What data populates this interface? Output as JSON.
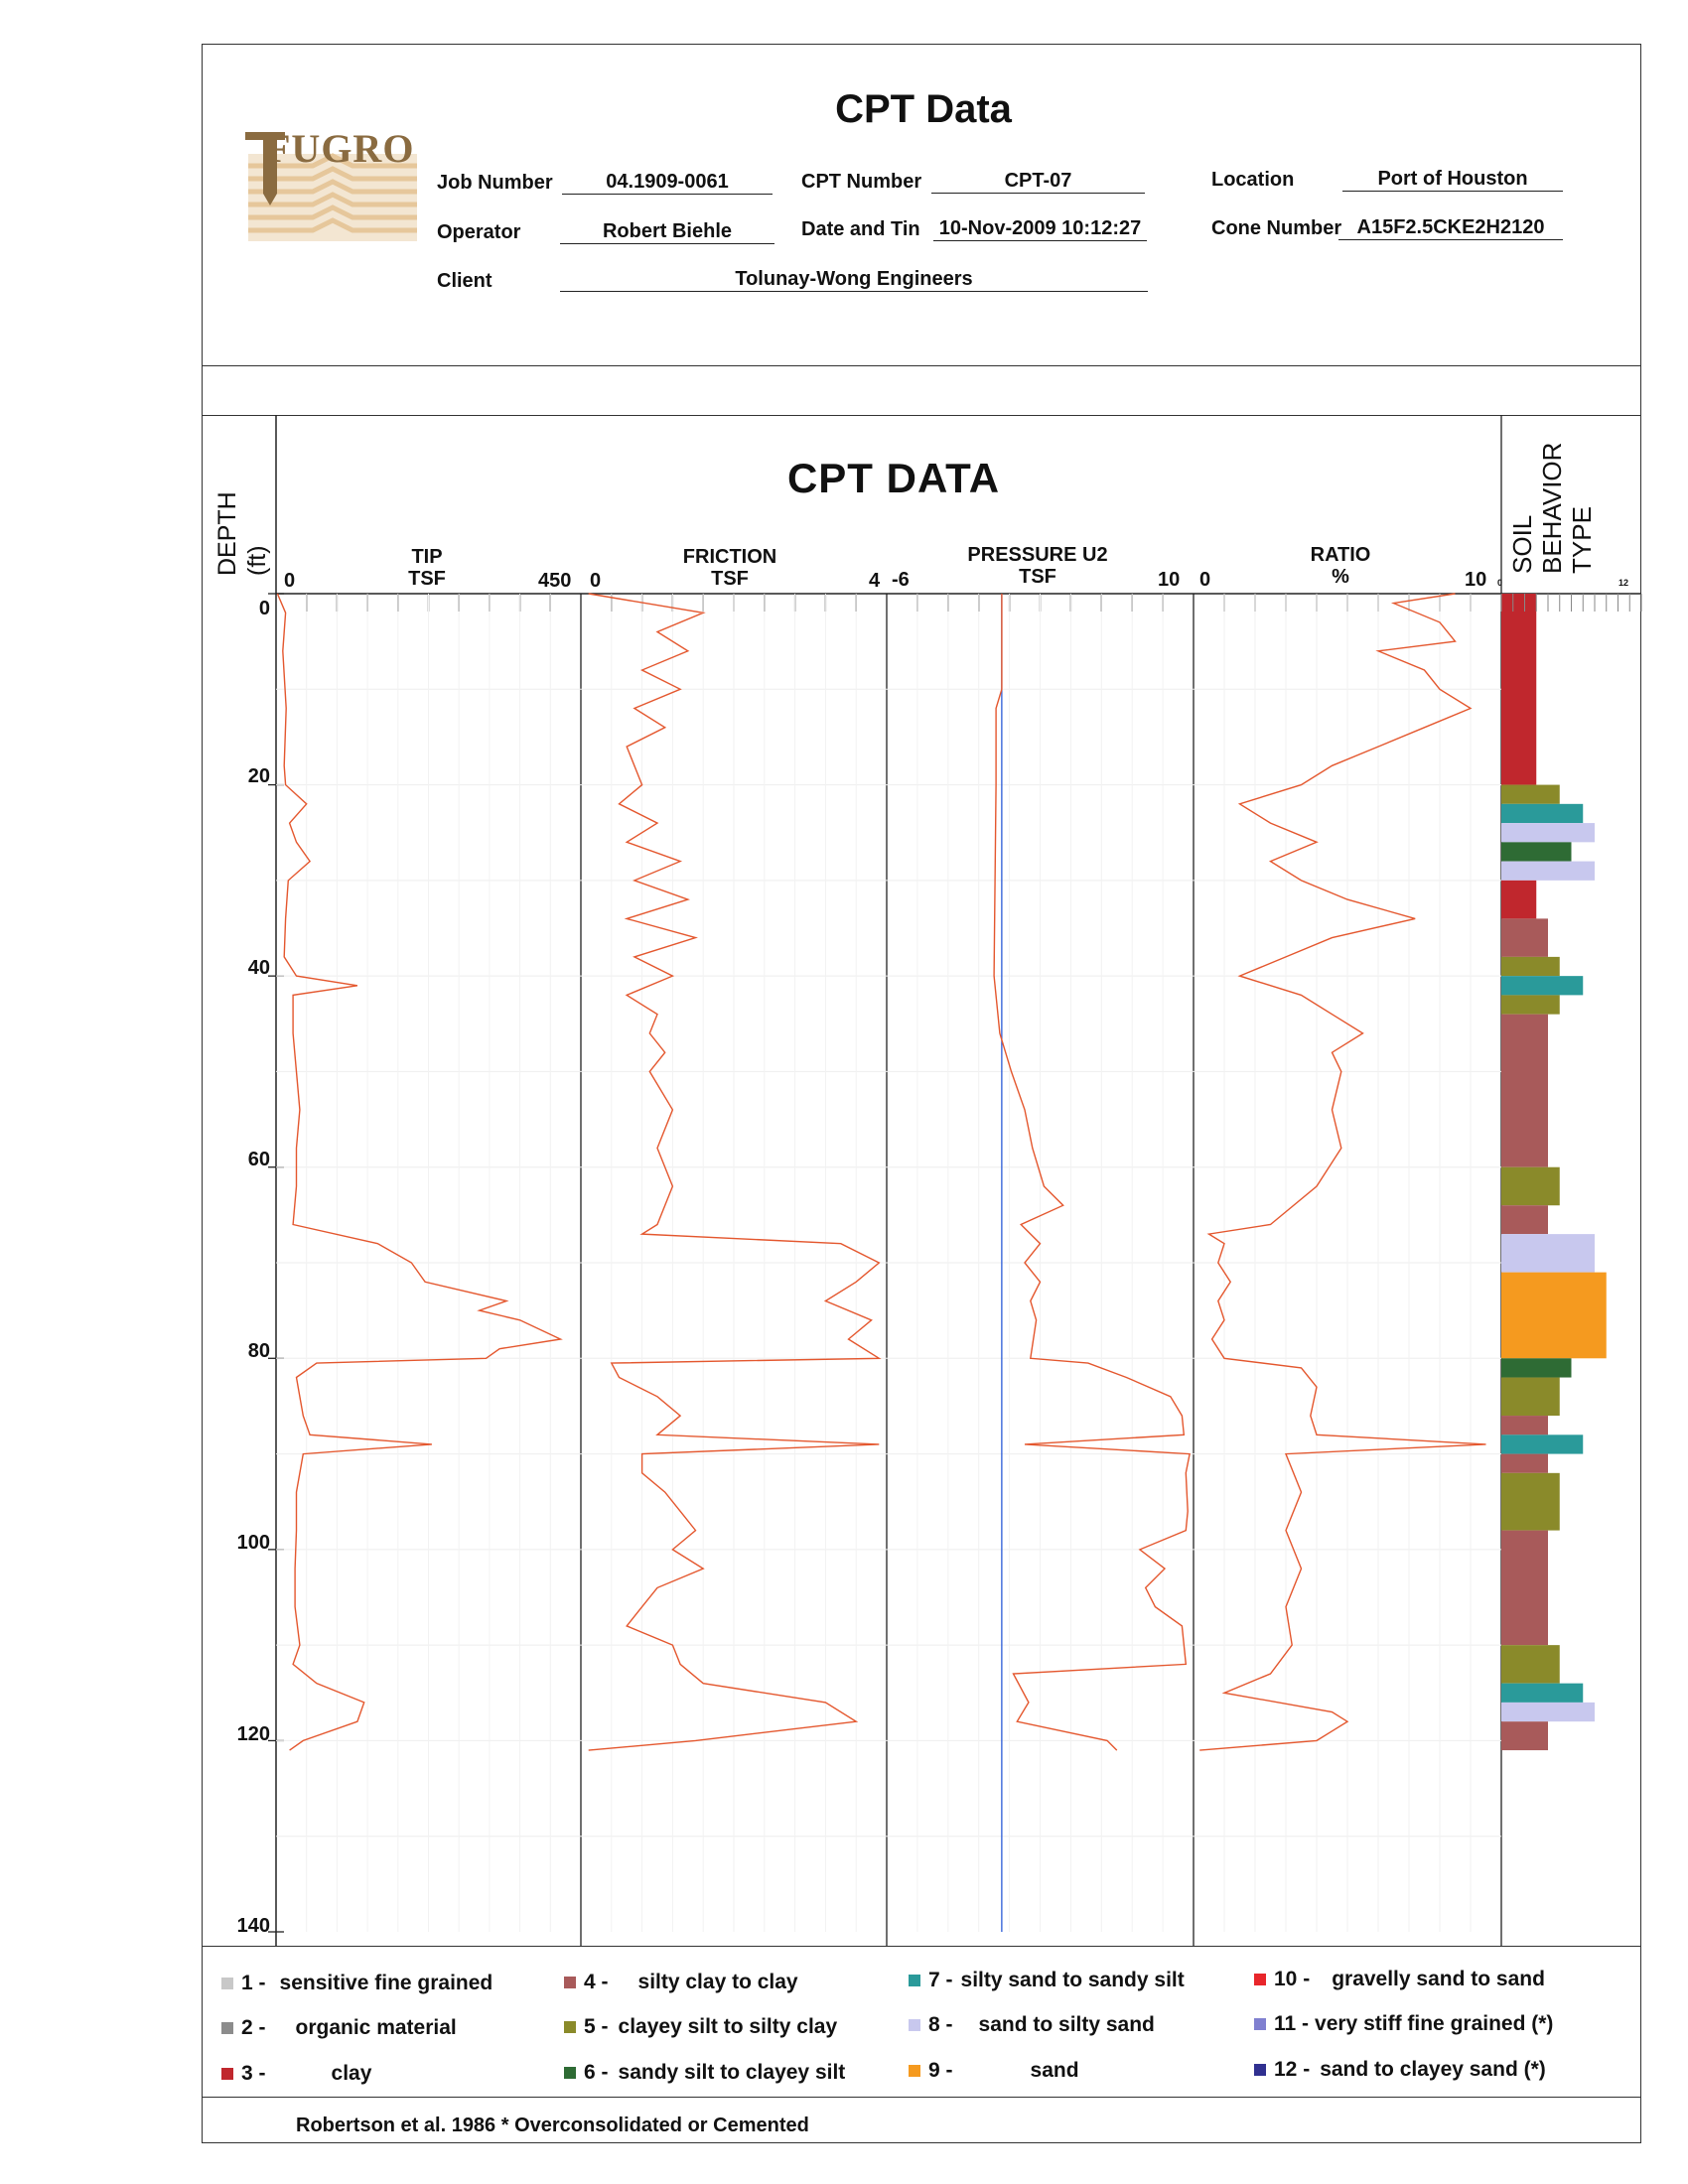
{
  "header": {
    "title": "CPT Data",
    "logo_text": "FUGRO",
    "fields": {
      "job_number_label": "Job Number",
      "job_number": "04.1909-0061",
      "cpt_number_label": "CPT Number",
      "cpt_number": "CPT-07",
      "location_label": "Location",
      "location": "Port of Houston",
      "operator_label": "Operator",
      "operator": "Robert Biehle",
      "date_label": "Date and Tin",
      "date": "10-Nov-2009 10:12:27",
      "cone_label": "Cone Number",
      "cone": "A15F2.5CKE2H2120",
      "client_label": "Client",
      "client": "Tolunay-Wong Engineers"
    }
  },
  "chart_data": {
    "type": "line",
    "title": "CPT DATA",
    "depth_axis": {
      "label_line1": "DEPTH",
      "label_line2": "(ft)",
      "range": [
        0,
        140
      ],
      "ticks": [
        0,
        20,
        40,
        60,
        80,
        100,
        120,
        140
      ]
    },
    "tracks": [
      {
        "name": "TIP",
        "unit": "TSF",
        "min": 0,
        "max": 450,
        "color": "#e4572e",
        "points": [
          [
            0,
            2
          ],
          [
            2,
            14
          ],
          [
            6,
            10
          ],
          [
            12,
            15
          ],
          [
            18,
            12
          ],
          [
            20,
            14
          ],
          [
            22,
            45
          ],
          [
            24,
            20
          ],
          [
            26,
            30
          ],
          [
            28,
            50
          ],
          [
            30,
            18
          ],
          [
            34,
            14
          ],
          [
            38,
            12
          ],
          [
            40,
            30
          ],
          [
            41,
            120
          ],
          [
            42,
            25
          ],
          [
            46,
            25
          ],
          [
            50,
            30
          ],
          [
            54,
            35
          ],
          [
            58,
            30
          ],
          [
            62,
            30
          ],
          [
            66,
            25
          ],
          [
            68,
            150
          ],
          [
            70,
            200
          ],
          [
            72,
            220
          ],
          [
            74,
            340
          ],
          [
            75,
            300
          ],
          [
            76,
            360
          ],
          [
            78,
            420
          ],
          [
            79,
            330
          ],
          [
            80,
            310
          ],
          [
            80.5,
            60
          ],
          [
            82,
            30
          ],
          [
            86,
            40
          ],
          [
            88,
            50
          ],
          [
            89,
            230
          ],
          [
            90,
            40
          ],
          [
            94,
            30
          ],
          [
            98,
            30
          ],
          [
            102,
            28
          ],
          [
            106,
            28
          ],
          [
            110,
            35
          ],
          [
            112,
            25
          ],
          [
            114,
            60
          ],
          [
            116,
            130
          ],
          [
            118,
            120
          ],
          [
            120,
            40
          ],
          [
            121,
            20
          ]
        ]
      },
      {
        "name": "FRICTION",
        "unit": "TSF",
        "min": 0,
        "max": 4,
        "color": "#e4572e",
        "points": [
          [
            0,
            0.1
          ],
          [
            2,
            1.6
          ],
          [
            4,
            1.0
          ],
          [
            6,
            1.4
          ],
          [
            8,
            0.8
          ],
          [
            10,
            1.3
          ],
          [
            12,
            0.7
          ],
          [
            14,
            1.1
          ],
          [
            16,
            0.6
          ],
          [
            20,
            0.8
          ],
          [
            22,
            0.5
          ],
          [
            24,
            1.0
          ],
          [
            26,
            0.6
          ],
          [
            28,
            1.3
          ],
          [
            30,
            0.7
          ],
          [
            32,
            1.4
          ],
          [
            34,
            0.6
          ],
          [
            36,
            1.5
          ],
          [
            38,
            0.7
          ],
          [
            40,
            1.2
          ],
          [
            42,
            0.6
          ],
          [
            44,
            1.0
          ],
          [
            46,
            0.9
          ],
          [
            48,
            1.1
          ],
          [
            50,
            0.9
          ],
          [
            54,
            1.2
          ],
          [
            58,
            1.0
          ],
          [
            62,
            1.2
          ],
          [
            66,
            1.0
          ],
          [
            67,
            0.8
          ],
          [
            68,
            3.4
          ],
          [
            70,
            3.9
          ],
          [
            72,
            3.6
          ],
          [
            74,
            3.2
          ],
          [
            76,
            3.8
          ],
          [
            78,
            3.5
          ],
          [
            80,
            3.9
          ],
          [
            80.5,
            0.4
          ],
          [
            82,
            0.5
          ],
          [
            84,
            1.0
          ],
          [
            86,
            1.3
          ],
          [
            88,
            1.0
          ],
          [
            89,
            3.9
          ],
          [
            90,
            0.8
          ],
          [
            92,
            0.8
          ],
          [
            94,
            1.1
          ],
          [
            96,
            1.3
          ],
          [
            98,
            1.5
          ],
          [
            100,
            1.2
          ],
          [
            102,
            1.6
          ],
          [
            104,
            1.0
          ],
          [
            106,
            0.8
          ],
          [
            108,
            0.6
          ],
          [
            110,
            1.2
          ],
          [
            112,
            1.3
          ],
          [
            114,
            1.6
          ],
          [
            116,
            3.2
          ],
          [
            118,
            3.6
          ],
          [
            120,
            1.5
          ],
          [
            121,
            0.1
          ]
        ]
      },
      {
        "name": "PRESSURE U2",
        "unit": "TSF",
        "min": -6,
        "max": 10,
        "color": "#e4572e",
        "points": [
          [
            0,
            0
          ],
          [
            10,
            0
          ],
          [
            12,
            -0.3
          ],
          [
            20,
            -0.3
          ],
          [
            40,
            -0.4
          ],
          [
            46,
            -0.1
          ],
          [
            50,
            0.5
          ],
          [
            54,
            1.2
          ],
          [
            58,
            1.6
          ],
          [
            62,
            2.2
          ],
          [
            64,
            3.2
          ],
          [
            66,
            1.0
          ],
          [
            68,
            2.0
          ],
          [
            70,
            1.2
          ],
          [
            72,
            2.0
          ],
          [
            74,
            1.5
          ],
          [
            76,
            1.8
          ],
          [
            80,
            1.5
          ],
          [
            80.5,
            4.5
          ],
          [
            82,
            6.5
          ],
          [
            84,
            8.8
          ],
          [
            86,
            9.4
          ],
          [
            88,
            9.5
          ],
          [
            89,
            1.2
          ],
          [
            90,
            9.8
          ],
          [
            92,
            9.6
          ],
          [
            96,
            9.7
          ],
          [
            98,
            9.6
          ],
          [
            100,
            7.2
          ],
          [
            102,
            8.5
          ],
          [
            104,
            7.5
          ],
          [
            106,
            8.0
          ],
          [
            108,
            9.4
          ],
          [
            112,
            9.6
          ],
          [
            113,
            0.6
          ],
          [
            116,
            1.4
          ],
          [
            118,
            0.8
          ],
          [
            120,
            5.5
          ],
          [
            121,
            6.0
          ]
        ]
      },
      {
        "name": "RATIO",
        "unit": "%",
        "min": 0,
        "max": 10,
        "color": "#e4572e",
        "points": [
          [
            0,
            8.5
          ],
          [
            1,
            6.5
          ],
          [
            3,
            8.0
          ],
          [
            5,
            8.5
          ],
          [
            6,
            6.0
          ],
          [
            8,
            7.5
          ],
          [
            10,
            8.0
          ],
          [
            12,
            9.0
          ],
          [
            14,
            7.5
          ],
          [
            16,
            6.0
          ],
          [
            18,
            4.5
          ],
          [
            20,
            3.5
          ],
          [
            22,
            1.5
          ],
          [
            24,
            2.5
          ],
          [
            26,
            4.0
          ],
          [
            28,
            2.5
          ],
          [
            30,
            3.5
          ],
          [
            32,
            5.0
          ],
          [
            34,
            7.2
          ],
          [
            36,
            4.5
          ],
          [
            38,
            3.0
          ],
          [
            40,
            1.5
          ],
          [
            42,
            3.5
          ],
          [
            44,
            4.5
          ],
          [
            46,
            5.5
          ],
          [
            48,
            4.5
          ],
          [
            50,
            4.8
          ],
          [
            54,
            4.5
          ],
          [
            58,
            4.8
          ],
          [
            62,
            4.0
          ],
          [
            66,
            2.5
          ],
          [
            67,
            0.5
          ],
          [
            68,
            1.0
          ],
          [
            70,
            0.8
          ],
          [
            72,
            1.2
          ],
          [
            74,
            0.8
          ],
          [
            76,
            1.0
          ],
          [
            78,
            0.6
          ],
          [
            80,
            1.0
          ],
          [
            81,
            3.5
          ],
          [
            83,
            4.0
          ],
          [
            86,
            3.8
          ],
          [
            88,
            4.0
          ],
          [
            89,
            9.5
          ],
          [
            90,
            3.0
          ],
          [
            94,
            3.5
          ],
          [
            98,
            3.0
          ],
          [
            102,
            3.5
          ],
          [
            106,
            3.0
          ],
          [
            110,
            3.2
          ],
          [
            113,
            2.5
          ],
          [
            115,
            1.0
          ],
          [
            117,
            4.5
          ],
          [
            118,
            5.0
          ],
          [
            119,
            4.5
          ],
          [
            120,
            4.0
          ],
          [
            121,
            0.2
          ]
        ]
      }
    ],
    "soil_behavior": {
      "label_lines": [
        "SOIL",
        "BEHAVIOR",
        "TYPE"
      ],
      "scale": [
        0,
        12
      ],
      "intervals": [
        [
          0,
          20,
          3
        ],
        [
          20,
          22,
          5
        ],
        [
          22,
          24,
          7
        ],
        [
          24,
          26,
          8
        ],
        [
          26,
          28,
          6
        ],
        [
          28,
          30,
          8
        ],
        [
          30,
          34,
          3
        ],
        [
          34,
          38,
          4
        ],
        [
          38,
          40,
          5
        ],
        [
          40,
          42,
          7
        ],
        [
          42,
          44,
          5
        ],
        [
          44,
          60,
          4
        ],
        [
          60,
          64,
          5
        ],
        [
          64,
          67,
          4
        ],
        [
          67,
          71,
          8
        ],
        [
          71,
          80,
          9
        ],
        [
          80,
          82,
          6
        ],
        [
          82,
          86,
          5
        ],
        [
          86,
          88,
          4
        ],
        [
          88,
          90,
          7
        ],
        [
          90,
          92,
          4
        ],
        [
          92,
          98,
          5
        ],
        [
          98,
          110,
          4
        ],
        [
          110,
          114,
          5
        ],
        [
          114,
          116,
          7
        ],
        [
          116,
          118,
          8
        ],
        [
          118,
          121,
          4
        ]
      ]
    },
    "legend": [
      {
        "num": "1 -",
        "label": "sensitive fine grained",
        "color": "#c8c8c8"
      },
      {
        "num": "2 -",
        "label": "organic material",
        "color": "#8c8c8c"
      },
      {
        "num": "3 -",
        "label": "clay",
        "color": "#c0272d"
      },
      {
        "num": "4 -",
        "label": "silty clay to clay",
        "color": "#a85a5a"
      },
      {
        "num": "5 -",
        "label": "clayey silt to silty clay",
        "color": "#8a8a2a"
      },
      {
        "num": "6 -",
        "label": "sandy silt to clayey silt",
        "color": "#2e6b34"
      },
      {
        "num": "7 -",
        "label": "silty sand to sandy silt",
        "color": "#2a9a9a"
      },
      {
        "num": "8 -",
        "label": "sand to silty sand",
        "color": "#c8c8ee"
      },
      {
        "num": "9 -",
        "label": "sand",
        "color": "#f59a1f"
      },
      {
        "num": "10 -",
        "label": "gravelly sand to sand",
        "color": "#e8262b"
      },
      {
        "num": "11 -",
        "label": "very stiff fine grained (*)",
        "color": "#8080d0"
      },
      {
        "num": "12 -",
        "label": "sand to clayey sand (*)",
        "color": "#303090"
      }
    ],
    "footnote": "Robertson et al. 1986  * Overconsolidated or Cemented"
  }
}
